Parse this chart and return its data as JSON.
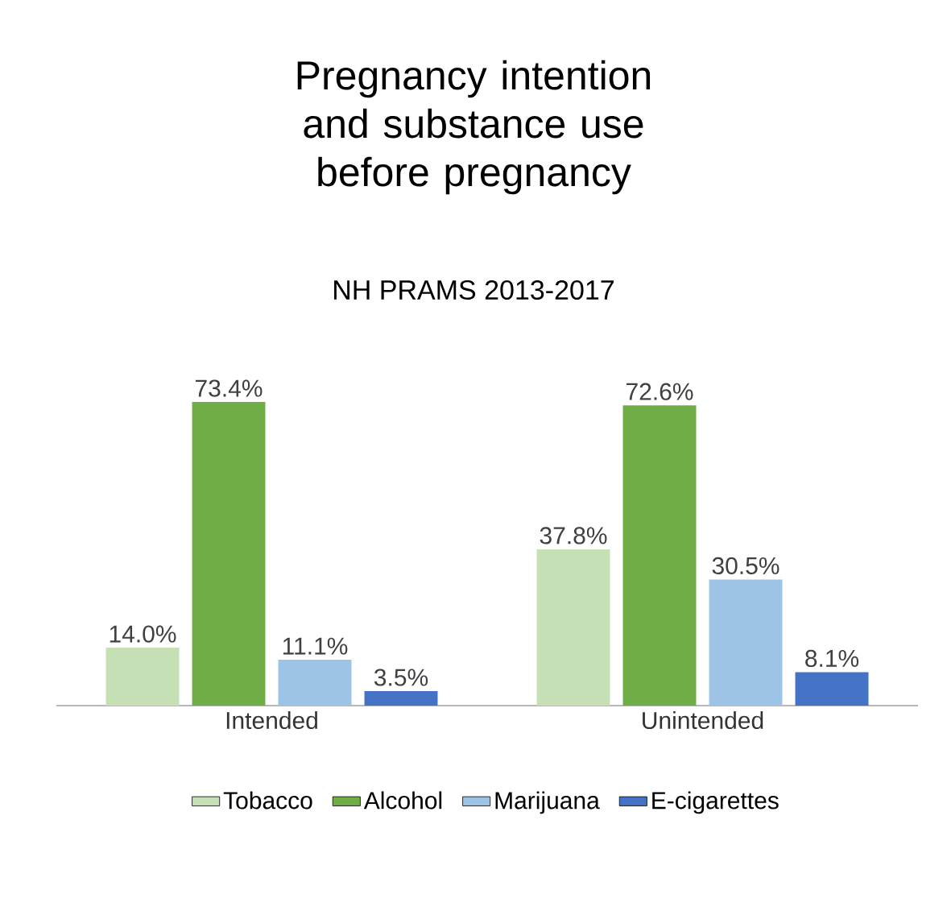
{
  "chart_data": {
    "type": "bar",
    "title": "Pregnancy intention and substance use before pregnancy",
    "subtitle": "NH PRAMS 2013-2017",
    "categories": [
      "Intended",
      "Unintended"
    ],
    "series": [
      {
        "name": "Tobacco",
        "color": "#c5e0b4",
        "values": [
          14.0,
          37.8
        ],
        "value_labels": [
          "14.0%",
          "37.8%"
        ]
      },
      {
        "name": "Alcohol",
        "color": "#70ad47",
        "values": [
          73.4,
          72.6
        ],
        "value_labels": [
          "73.4%",
          "72.6%"
        ]
      },
      {
        "name": "Marijuana",
        "color": "#9dc3e6",
        "values": [
          11.1,
          30.5
        ],
        "value_labels": [
          "11.1%",
          "30.5%"
        ]
      },
      {
        "name": "E-cigarettes",
        "color": "#4472c4",
        "values": [
          3.5,
          8.1
        ],
        "value_labels": [
          "3.5%",
          "8.1%"
        ]
      }
    ],
    "legend": "bottom"
  }
}
